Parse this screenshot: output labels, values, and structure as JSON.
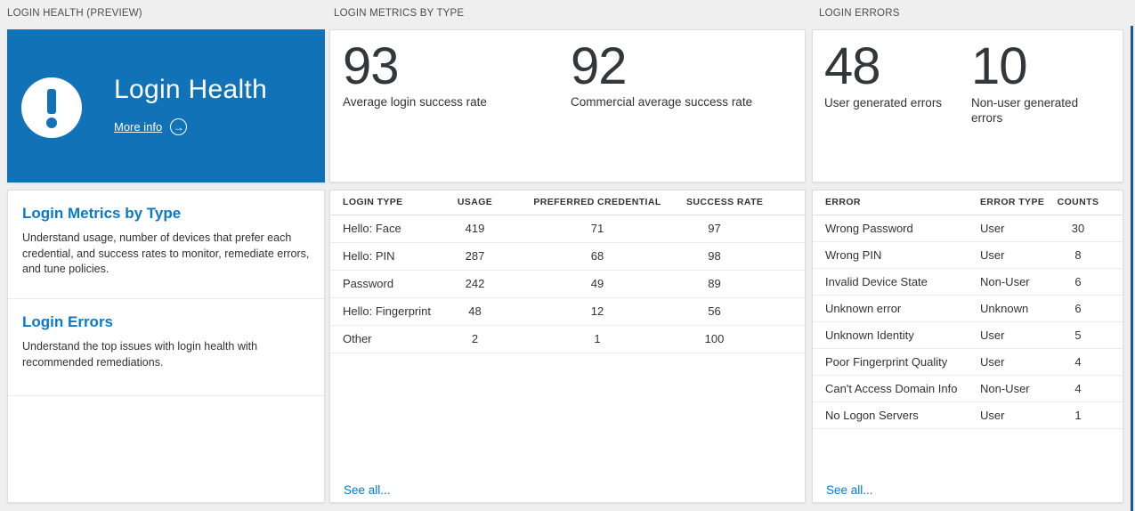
{
  "colors": {
    "tile_blue": "#1272b8",
    "heading_blue": "#0b79ca",
    "link_blue": "#0078d4",
    "stat_text": "#32373c",
    "edge_blue": "#1b5c8f",
    "background": "#efefef"
  },
  "panels": {
    "health": {
      "header": "LOGIN HEALTH (PREVIEW)",
      "tile": {
        "title": "Login Health",
        "more_info_label": "More info",
        "arrow_glyph": "→"
      },
      "sections": [
        {
          "title": "Login Metrics by Type",
          "description": "Understand usage, number of devices that prefer each credential, and success rates to monitor, remediate errors, and tune policies."
        },
        {
          "title": "Login Errors",
          "description": "Understand the top issues with login health with recommended remediations."
        }
      ]
    },
    "metrics": {
      "header": "LOGIN METRICS BY TYPE",
      "stats": [
        {
          "value": "93",
          "label": "Average login success rate"
        },
        {
          "value": "92",
          "label": "Commercial average success rate"
        }
      ],
      "table": {
        "columns": [
          "LOGIN TYPE",
          "USAGE",
          "PREFERRED CREDENTIAL",
          "SUCCESS RATE"
        ],
        "rows": [
          [
            "Hello: Face",
            "419",
            "71",
            "97"
          ],
          [
            "Hello: PIN",
            "287",
            "68",
            "98"
          ],
          [
            "Password",
            "242",
            "49",
            "89"
          ],
          [
            "Hello: Fingerprint",
            "48",
            "12",
            "56"
          ],
          [
            "Other",
            "2",
            "1",
            "100"
          ]
        ]
      },
      "see_all_label": "See all..."
    },
    "errors": {
      "header": "LOGIN ERRORS",
      "stats": [
        {
          "value": "48",
          "label": "User generated errors"
        },
        {
          "value": "10",
          "label": "Non-user generated errors"
        }
      ],
      "table": {
        "columns": [
          "ERROR",
          "ERROR TYPE",
          "COUNTS"
        ],
        "rows": [
          [
            "Wrong Password",
            "User",
            "30"
          ],
          [
            "Wrong PIN",
            "User",
            "8"
          ],
          [
            "Invalid Device State",
            "Non-User",
            "6"
          ],
          [
            "Unknown error",
            "Unknown",
            "6"
          ],
          [
            "Unknown Identity",
            "User",
            "5"
          ],
          [
            "Poor Fingerprint Quality",
            "User",
            "4"
          ],
          [
            "Can't Access Domain Info",
            "Non-User",
            "4"
          ],
          [
            "No Logon Servers",
            "User",
            "1"
          ]
        ]
      },
      "see_all_label": "See all..."
    }
  }
}
